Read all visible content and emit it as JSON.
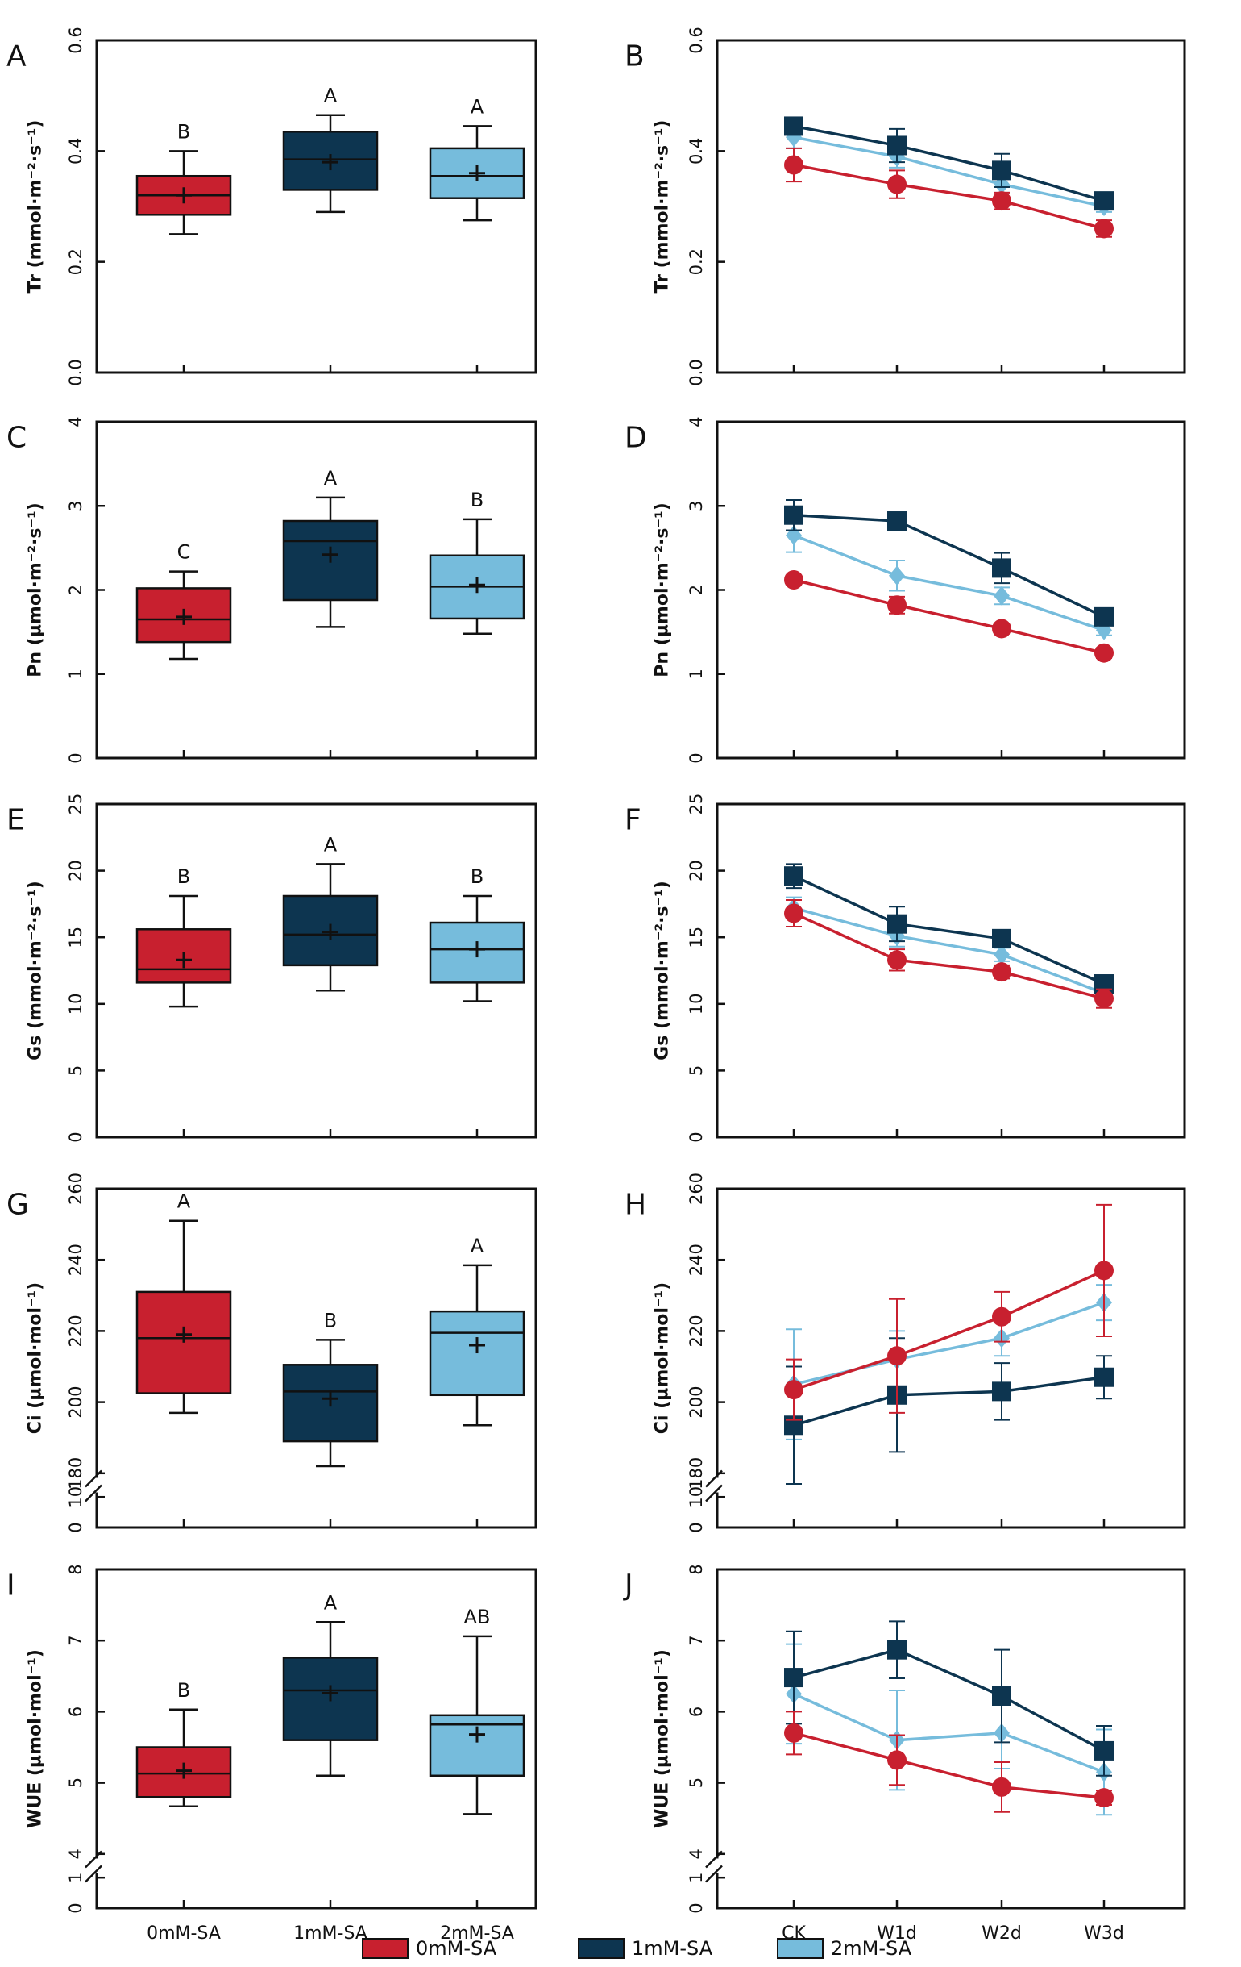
{
  "colors": {
    "0mM-SA": "#c8202f",
    "1mM-SA": "#0d3550",
    "2mM-SA": "#76bcdc",
    "axis": "#111111"
  },
  "legend": {
    "items": [
      {
        "label": "0mM-SA",
        "color": "#c8202f"
      },
      {
        "label": "1mM-SA",
        "color": "#0d3550"
      },
      {
        "label": "2mM-SA",
        "color": "#76bcdc"
      }
    ]
  },
  "chart_data": [
    {
      "panel": "A",
      "type": "box",
      "ylabel": "Tr (mmol·m⁻²·s⁻¹)",
      "ylim": [
        0,
        0.6
      ],
      "yticks": [
        "0.0",
        "0.2",
        "0.4",
        "0.6"
      ],
      "ytick_values": [
        0,
        0.2,
        0.4,
        0.6
      ],
      "categories": [
        "0mM-SA",
        "1mM-SA",
        "2mM-SA"
      ],
      "boxes": [
        {
          "group": "0mM-SA",
          "min": 0.25,
          "q1": 0.285,
          "median": 0.32,
          "q3": 0.355,
          "max": 0.4,
          "mean": 0.32,
          "sig": "B"
        },
        {
          "group": "1mM-SA",
          "min": 0.29,
          "q1": 0.33,
          "median": 0.385,
          "q3": 0.435,
          "max": 0.465,
          "mean": 0.38,
          "sig": "A"
        },
        {
          "group": "2mM-SA",
          "min": 0.275,
          "q1": 0.315,
          "median": 0.355,
          "q3": 0.405,
          "max": 0.445,
          "mean": 0.36,
          "sig": "A"
        }
      ]
    },
    {
      "panel": "B",
      "type": "line",
      "ylabel": "Tr (mmol·m⁻²·s⁻¹)",
      "ylim": [
        0,
        0.6
      ],
      "yticks": [
        "0.0",
        "0.2",
        "0.4",
        "0.6"
      ],
      "ytick_values": [
        0,
        0.2,
        0.4,
        0.6
      ],
      "x": [
        "CK",
        "W1d",
        "W2d",
        "W3d"
      ],
      "series": [
        {
          "name": "2mM-SA",
          "marker": "diamond",
          "values": [
            0.425,
            0.39,
            0.34,
            0.3
          ],
          "err": [
            0.02,
            0.02,
            0.015,
            0.01
          ]
        },
        {
          "name": "1mM-SA",
          "marker": "square",
          "values": [
            0.445,
            0.41,
            0.365,
            0.31
          ],
          "err": [
            0.015,
            0.03,
            0.03,
            0.01
          ]
        },
        {
          "name": "0mM-SA",
          "marker": "circle",
          "values": [
            0.375,
            0.34,
            0.31,
            0.26
          ],
          "err": [
            0.03,
            0.025,
            0.015,
            0.015
          ]
        }
      ]
    },
    {
      "panel": "C",
      "type": "box",
      "ylabel": "Pn (µmol·m⁻²·s⁻¹)",
      "ylim": [
        0,
        4
      ],
      "yticks": [
        "0",
        "1",
        "2",
        "3",
        "4"
      ],
      "ytick_values": [
        0,
        1,
        2,
        3,
        4
      ],
      "categories": [
        "0mM-SA",
        "1mM-SA",
        "2mM-SA"
      ],
      "boxes": [
        {
          "group": "0mM-SA",
          "min": 1.18,
          "q1": 1.38,
          "median": 1.65,
          "q3": 2.02,
          "max": 2.22,
          "mean": 1.68,
          "sig": "C"
        },
        {
          "group": "1mM-SA",
          "min": 1.56,
          "q1": 1.88,
          "median": 2.58,
          "q3": 2.82,
          "max": 3.1,
          "mean": 2.42,
          "sig": "A"
        },
        {
          "group": "2mM-SA",
          "min": 1.48,
          "q1": 1.66,
          "median": 2.04,
          "q3": 2.41,
          "max": 2.84,
          "mean": 2.06,
          "sig": "B"
        }
      ]
    },
    {
      "panel": "D",
      "type": "line",
      "ylabel": "Pn (µmol·m⁻²·s⁻¹)",
      "ylim": [
        0,
        4
      ],
      "yticks": [
        "0",
        "1",
        "2",
        "3",
        "4"
      ],
      "ytick_values": [
        0,
        1,
        2,
        3,
        4
      ],
      "x": [
        "CK",
        "W1d",
        "W2d",
        "W3d"
      ],
      "series": [
        {
          "name": "2mM-SA",
          "marker": "diamond",
          "values": [
            2.65,
            2.17,
            1.93,
            1.52
          ],
          "err": [
            0.2,
            0.18,
            0.1,
            0.06
          ]
        },
        {
          "name": "1mM-SA",
          "marker": "square",
          "values": [
            2.89,
            2.82,
            2.26,
            1.68
          ],
          "err": [
            0.18,
            0.06,
            0.18,
            0.06
          ]
        },
        {
          "name": "0mM-SA",
          "marker": "circle",
          "values": [
            2.12,
            1.82,
            1.54,
            1.25
          ],
          "err": [
            0.05,
            0.1,
            0.06,
            0.06
          ]
        }
      ]
    },
    {
      "panel": "E",
      "type": "box",
      "ylabel": "Gs (mmol·m⁻²·s⁻¹)",
      "ylim": [
        0,
        25
      ],
      "yticks": [
        "0",
        "5",
        "10",
        "15",
        "20",
        "25"
      ],
      "ytick_values": [
        0,
        5,
        10,
        15,
        20,
        25
      ],
      "categories": [
        "0mM-SA",
        "1mM-SA",
        "2mM-SA"
      ],
      "boxes": [
        {
          "group": "0mM-SA",
          "min": 9.8,
          "q1": 11.6,
          "median": 12.6,
          "q3": 15.6,
          "max": 18.1,
          "mean": 13.3,
          "sig": "B"
        },
        {
          "group": "1mM-SA",
          "min": 11.0,
          "q1": 12.9,
          "median": 15.2,
          "q3": 18.1,
          "max": 20.5,
          "mean": 15.4,
          "sig": "A"
        },
        {
          "group": "2mM-SA",
          "min": 10.2,
          "q1": 11.6,
          "median": 14.1,
          "q3": 16.1,
          "max": 18.1,
          "mean": 14.1,
          "sig": "B"
        }
      ]
    },
    {
      "panel": "F",
      "type": "line",
      "ylabel": "Gs (mmol·m⁻²·s⁻¹)",
      "ylim": [
        0,
        25
      ],
      "yticks": [
        "0",
        "5",
        "10",
        "15",
        "20",
        "25"
      ],
      "ytick_values": [
        0,
        5,
        10,
        15,
        20,
        25
      ],
      "x": [
        "CK",
        "W1d",
        "W2d",
        "W3d"
      ],
      "series": [
        {
          "name": "2mM-SA",
          "marker": "diamond",
          "values": [
            17.2,
            15.1,
            13.7,
            10.8
          ],
          "err": [
            0.8,
            0.8,
            0.5,
            0.4
          ]
        },
        {
          "name": "1mM-SA",
          "marker": "square",
          "values": [
            19.6,
            16.0,
            14.9,
            11.5
          ],
          "err": [
            0.9,
            1.3,
            0.5,
            0.4
          ]
        },
        {
          "name": "0mM-SA",
          "marker": "circle",
          "values": [
            16.8,
            13.3,
            12.4,
            10.4
          ],
          "err": [
            1.0,
            0.8,
            0.5,
            0.7
          ]
        }
      ]
    },
    {
      "panel": "G",
      "type": "box",
      "ylabel": "Ci (µmol·mol⁻¹)",
      "ylim": [
        0,
        260
      ],
      "axis_break": true,
      "yticks": [
        "0",
        "10",
        "180",
        "200",
        "220",
        "240",
        "260"
      ],
      "ytick_values": [
        0,
        10,
        180,
        200,
        220,
        240,
        260
      ],
      "categories": [
        "0mM-SA",
        "1mM-SA",
        "2mM-SA"
      ],
      "boxes": [
        {
          "group": "0mM-SA",
          "min": 197,
          "q1": 202.5,
          "median": 218,
          "q3": 231,
          "max": 251,
          "mean": 219,
          "sig": "A"
        },
        {
          "group": "1mM-SA",
          "min": 182,
          "q1": 189,
          "median": 203,
          "q3": 210.5,
          "max": 217.5,
          "mean": 201,
          "sig": "B"
        },
        {
          "group": "2mM-SA",
          "min": 193.5,
          "q1": 202,
          "median": 219.5,
          "q3": 225.5,
          "max": 238.5,
          "mean": 216,
          "sig": "A"
        }
      ]
    },
    {
      "panel": "H",
      "type": "line",
      "ylabel": "Ci (µmol·mol⁻¹)",
      "ylim": [
        0,
        260
      ],
      "axis_break": true,
      "yticks": [
        "0",
        "10",
        "180",
        "200",
        "220",
        "240",
        "260"
      ],
      "ytick_values": [
        0,
        10,
        180,
        200,
        220,
        240,
        260
      ],
      "x": [
        "CK",
        "W1d",
        "W2d",
        "W3d"
      ],
      "series": [
        {
          "name": "2mM-SA",
          "marker": "diamond",
          "values": [
            205,
            212,
            218,
            228
          ],
          "err": [
            15.5,
            8,
            5,
            5
          ]
        },
        {
          "name": "1mM-SA",
          "marker": "square",
          "values": [
            193.5,
            202,
            203,
            207
          ],
          "err": [
            16.5,
            16,
            8,
            6
          ]
        },
        {
          "name": "0mM-SA",
          "marker": "circle",
          "values": [
            203.5,
            213,
            224,
            237
          ],
          "err": [
            8.5,
            16,
            7,
            18.5
          ]
        }
      ]
    },
    {
      "panel": "I",
      "type": "box",
      "ylabel": "WUE (µmol·mol⁻¹)",
      "ylim": [
        0,
        8
      ],
      "axis_break": true,
      "yticks": [
        "0",
        "1",
        "4",
        "5",
        "6",
        "7",
        "8"
      ],
      "ytick_values": [
        0,
        1,
        4,
        5,
        6,
        7,
        8
      ],
      "categories": [
        "0mM-SA",
        "1mM-SA",
        "2mM-SA"
      ],
      "boxes": [
        {
          "group": "0mM-SA",
          "min": 4.67,
          "q1": 4.8,
          "median": 5.13,
          "q3": 5.5,
          "max": 6.03,
          "mean": 5.17,
          "sig": "B"
        },
        {
          "group": "1mM-SA",
          "min": 5.1,
          "q1": 5.6,
          "median": 6.3,
          "q3": 6.76,
          "max": 7.26,
          "mean": 6.26,
          "sig": "A"
        },
        {
          "group": "2mM-SA",
          "min": 4.56,
          "q1": 5.1,
          "median": 5.82,
          "q3": 5.95,
          "max": 7.06,
          "mean": 5.68,
          "sig": "AB"
        }
      ]
    },
    {
      "panel": "J",
      "type": "line",
      "ylabel": "WUE (µmol·mol⁻¹)",
      "ylim": [
        0,
        8
      ],
      "axis_break": true,
      "yticks": [
        "0",
        "1",
        "4",
        "5",
        "6",
        "7",
        "8"
      ],
      "ytick_values": [
        0,
        1,
        4,
        5,
        6,
        7,
        8
      ],
      "x": [
        "CK",
        "W1d",
        "W2d",
        "W3d"
      ],
      "series": [
        {
          "name": "2mM-SA",
          "marker": "diamond",
          "values": [
            6.25,
            5.6,
            5.7,
            5.15
          ],
          "err": [
            0.7,
            0.7,
            0.5,
            0.6
          ]
        },
        {
          "name": "1mM-SA",
          "marker": "square",
          "values": [
            6.48,
            6.87,
            6.22,
            5.45
          ],
          "err": [
            0.65,
            0.4,
            0.65,
            0.35
          ]
        },
        {
          "name": "0mM-SA",
          "marker": "circle",
          "values": [
            5.7,
            5.32,
            4.94,
            4.79
          ],
          "err": [
            0.3,
            0.35,
            0.35,
            0.1
          ]
        }
      ]
    }
  ]
}
